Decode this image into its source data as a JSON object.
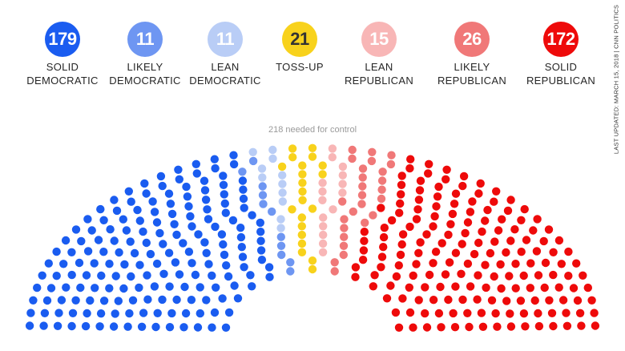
{
  "legend": [
    {
      "count": "179",
      "line1": "SOLID",
      "line2": "DEMOCRATIC",
      "color": "#1a5cf0",
      "text_color": "#ffffff"
    },
    {
      "count": "11",
      "line1": "LIKELY",
      "line2": "DEMOCRATIC",
      "color": "#6e96f2",
      "text_color": "#ffffff"
    },
    {
      "count": "11",
      "line1": "LEAN",
      "line2": "DEMOCRATIC",
      "color": "#b9cdf6",
      "text_color": "#ffffff"
    },
    {
      "count": "21",
      "line1": "TOSS-UP",
      "line2": "",
      "color": "#f8d21c",
      "text_color": "#333333"
    },
    {
      "count": "15",
      "line1": "LEAN",
      "line2": "REPUBLICAN",
      "color": "#f8b6b6",
      "text_color": "#ffffff"
    },
    {
      "count": "26",
      "line1": "LIKELY",
      "line2": "REPUBLICAN",
      "color": "#f07878",
      "text_color": "#ffffff"
    },
    {
      "count": "172",
      "line1": "SOLID",
      "line2": "REPUBLICAN",
      "color": "#ee0a0a",
      "text_color": "#ffffff"
    }
  ],
  "control_note": "218 needed for control",
  "last_updated": "LAST UPDATED: MARCH 15, 2018 | CNN POLITICS",
  "chart_data": {
    "type": "seat-map",
    "total_seats": 435,
    "control_threshold": 218,
    "categories": [
      "Solid Democratic",
      "Likely Democratic",
      "Lean Democratic",
      "Toss-up",
      "Lean Republican",
      "Likely Republican",
      "Solid Republican"
    ],
    "values": [
      179,
      11,
      11,
      21,
      15,
      26,
      172
    ],
    "colors": [
      "#1a5cf0",
      "#6e96f2",
      "#b9cdf6",
      "#f8d21c",
      "#f8b6b6",
      "#f07878",
      "#ee0a0a"
    ]
  }
}
